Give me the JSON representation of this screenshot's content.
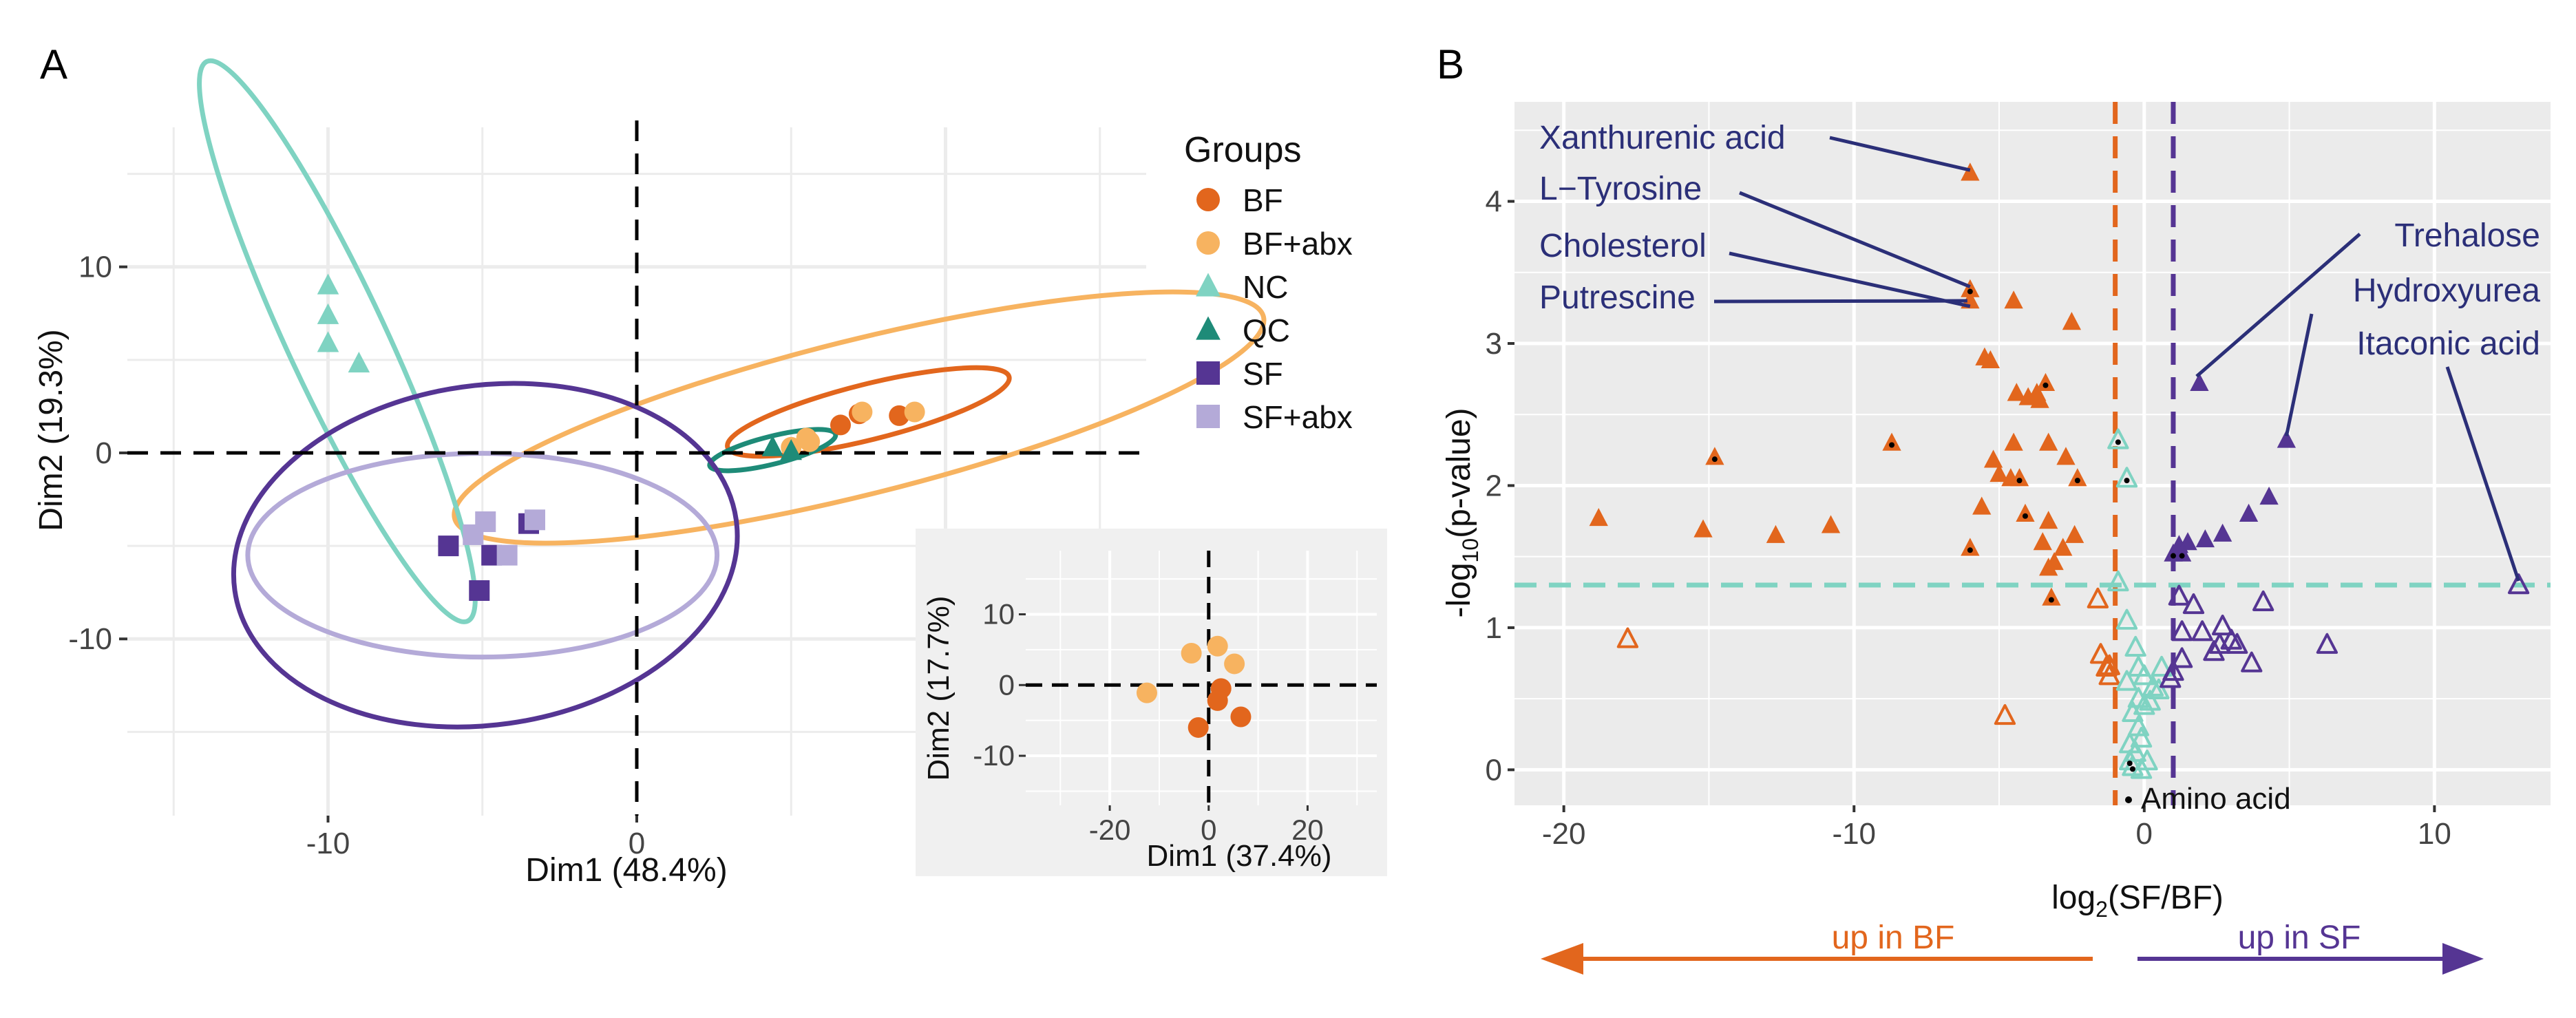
{
  "panel_labels": {
    "a": "A",
    "b": "B"
  },
  "colors": {
    "BF": "#e2661d",
    "BF_abx": "#f7b360",
    "NC": "#7fd3c2",
    "QC": "#1e8b78",
    "SF": "#553593",
    "SF_abx": "#b4aad8",
    "navy": "#2b2f78",
    "panel_bg": "#ebebeb",
    "grid": "#ffffff",
    "inset_bg": "#f0f0f0",
    "light_grid": "#ececec"
  },
  "chart_data": [
    {
      "type": "scatter",
      "id": "pca-main",
      "xlabel": "Dim1 (48.4%)",
      "ylabel": "Dim2 (19.3%)",
      "xlim": [
        -16.5,
        16.5
      ],
      "ylim": [
        -19.5,
        17.5
      ],
      "xticks": [
        -10,
        0
      ],
      "xtick_labels": [
        "-10",
        "0"
      ],
      "yticks": [
        10,
        0,
        -10
      ],
      "ytick_labels": [
        "10",
        "0",
        "-10"
      ],
      "legend": {
        "title": "Groups",
        "items": [
          {
            "label": "BF",
            "shape": "circle",
            "color_key": "BF"
          },
          {
            "label": "BF+abx",
            "shape": "circle",
            "color_key": "BF_abx"
          },
          {
            "label": "NC",
            "shape": "triangle",
            "color_key": "NC"
          },
          {
            "label": "QC",
            "shape": "triangle",
            "color_key": "QC"
          },
          {
            "label": "SF",
            "shape": "square",
            "color_key": "SF"
          },
          {
            "label": "SF+abx",
            "shape": "square",
            "color_key": "SF_abx"
          }
        ]
      },
      "series": [
        {
          "name": "BF",
          "shape": "circle",
          "color_key": "BF",
          "points": [
            [
              6.6,
              1.5
            ],
            [
              8.5,
              2.0
            ],
            [
              7.2,
              2.1
            ]
          ],
          "ellipse": {
            "cx": 7.5,
            "cy": 2.2,
            "rx": 4.7,
            "ry": 0.9,
            "angle": 14
          }
        },
        {
          "name": "BF+abx",
          "shape": "circle",
          "color_key": "BF_abx",
          "points": [
            [
              7.3,
              2.2
            ],
            [
              9.0,
              2.2
            ],
            [
              5.5,
              0.8
            ],
            [
              5.0,
              0.3
            ],
            [
              5.6,
              0.6
            ]
          ],
          "ellipse": {
            "cx": 7.2,
            "cy": 1.9,
            "rx": 13.5,
            "ry": 2.5,
            "angle": 14
          }
        },
        {
          "name": "NC",
          "shape": "triangle",
          "color_key": "NC",
          "points": [
            [
              -10.0,
              9.0
            ],
            [
              -10.0,
              7.4
            ],
            [
              -10.0,
              5.9
            ],
            [
              -9.0,
              4.8
            ]
          ],
          "ellipse": {
            "cx": -9.7,
            "cy": 6.0,
            "rx": 10.0,
            "ry": 1.6,
            "angle": -65
          }
        },
        {
          "name": "QC",
          "shape": "triangle",
          "color_key": "QC",
          "points": [
            [
              4.4,
              0.3
            ],
            [
              5.0,
              0.1
            ]
          ],
          "ellipse": {
            "cx": 4.4,
            "cy": 0.15,
            "rx": 2.1,
            "ry": 0.45,
            "angle": 14
          }
        },
        {
          "name": "SF",
          "shape": "square",
          "color_key": "SF",
          "points": [
            [
              -6.1,
              -5.0
            ],
            [
              -4.7,
              -5.5
            ],
            [
              -3.5,
              -3.8
            ],
            [
              -5.1,
              -7.4
            ]
          ],
          "ellipse": {
            "cx": -4.9,
            "cy": -5.5,
            "rx": 8.2,
            "ry": 5.5,
            "angle": 8
          }
        },
        {
          "name": "SF+abx",
          "shape": "square",
          "color_key": "SF_abx",
          "points": [
            [
              -4.9,
              -3.7
            ],
            [
              -5.3,
              -4.4
            ],
            [
              -4.2,
              -5.5
            ],
            [
              -3.3,
              -3.6
            ]
          ],
          "ellipse": {
            "cx": -5.0,
            "cy": -5.5,
            "rx": 7.6,
            "ry": 3.3,
            "angle": 0
          }
        }
      ]
    },
    {
      "type": "scatter",
      "id": "pca-inset",
      "xlabel": "Dim1 (37.4%)",
      "ylabel": "Dim2 (17.7%)",
      "xlim": [
        -37,
        34
      ],
      "ylim": [
        -17,
        19
      ],
      "xticks": [
        -20,
        0,
        20
      ],
      "xtick_labels": [
        "-20",
        "0",
        "20"
      ],
      "yticks": [
        10,
        0,
        -10
      ],
      "yticks_labels": [
        "10",
        "0",
        "-10"
      ],
      "series": [
        {
          "name": "BF",
          "color_key": "BF",
          "points": [
            [
              2.5,
              -0.5
            ],
            [
              1.8,
              -2.2
            ],
            [
              6.5,
              -4.5
            ],
            [
              -2.1,
              -6.0
            ]
          ]
        },
        {
          "name": "BF+abx",
          "color_key": "BF_abx",
          "points": [
            [
              -3.5,
              4.5
            ],
            [
              1.8,
              5.5
            ],
            [
              5.2,
              3.0
            ],
            [
              -12.5,
              -1.1
            ]
          ]
        }
      ]
    },
    {
      "type": "scatter",
      "id": "volcano",
      "xlabel": "log2(SF/BF)",
      "ylabel": "-log10(p-value)",
      "xlim": [
        -21.7,
        14
      ],
      "ylim": [
        -0.25,
        4.7
      ],
      "xticks": [
        -20,
        -10,
        0,
        10
      ],
      "xtick_labels": [
        "-20",
        "-10",
        "0",
        "10"
      ],
      "yticks": [
        0,
        1,
        2,
        3,
        4
      ],
      "ytick_labels": [
        "0",
        "1",
        "2",
        "3",
        "4"
      ],
      "thresholds": {
        "x_left": -1.0,
        "x_right": 1.0,
        "y": 1.3
      },
      "aa_legend": "Amino acid",
      "arrows": {
        "left": "up in BF",
        "right": "up in SF"
      },
      "series": [
        {
          "name": "up in BF (significant)",
          "color_key": "BF",
          "filled": true,
          "points": [
            [
              -6.0,
              4.2
            ],
            [
              -6.0,
              3.38
            ],
            [
              -4.5,
              3.3
            ],
            [
              -6.0,
              3.3
            ],
            [
              -2.5,
              3.15
            ],
            [
              -5.5,
              2.9
            ],
            [
              -5.3,
              2.88
            ],
            [
              -4.4,
              2.65
            ],
            [
              -4.0,
              2.62
            ],
            [
              -3.7,
              2.65
            ],
            [
              -3.4,
              2.72
            ],
            [
              -3.6,
              2.6
            ],
            [
              -4.5,
              2.3
            ],
            [
              -3.3,
              2.3
            ],
            [
              -2.7,
              2.2
            ],
            [
              -8.7,
              2.3
            ],
            [
              -14.8,
              2.2
            ],
            [
              -5.2,
              2.18
            ],
            [
              -5.0,
              2.08
            ],
            [
              -4.6,
              2.05
            ],
            [
              -4.3,
              2.05
            ],
            [
              -2.3,
              2.05
            ],
            [
              -5.6,
              1.85
            ],
            [
              -4.1,
              1.8
            ],
            [
              -3.3,
              1.75
            ],
            [
              -3.5,
              1.6
            ],
            [
              -2.4,
              1.65
            ],
            [
              -18.8,
              1.77
            ],
            [
              -15.2,
              1.69
            ],
            [
              -12.7,
              1.65
            ],
            [
              -10.8,
              1.72
            ],
            [
              -6.0,
              1.56
            ],
            [
              -2.8,
              1.56
            ],
            [
              -3.1,
              1.46
            ],
            [
              -3.3,
              1.42
            ],
            [
              -3.2,
              1.21
            ]
          ],
          "amino_acids": [
            [
              -6.0,
              3.38
            ],
            [
              -3.4,
              2.72
            ],
            [
              -8.7,
              2.3
            ],
            [
              -14.8,
              2.2
            ],
            [
              -4.3,
              2.05
            ],
            [
              -2.3,
              2.05
            ],
            [
              -4.1,
              1.8
            ],
            [
              -6.0,
              1.56
            ],
            [
              -3.2,
              1.21
            ]
          ]
        },
        {
          "name": "up in SF (significant)",
          "color_key": "SF",
          "filled": true,
          "points": [
            [
              1.9,
              2.72
            ],
            [
              4.9,
              2.32
            ],
            [
              4.3,
              1.92
            ],
            [
              3.6,
              1.8
            ],
            [
              2.1,
              1.62
            ],
            [
              2.7,
              1.66
            ],
            [
              1.5,
              1.6
            ],
            [
              1.2,
              1.58
            ],
            [
              1.3,
              1.52
            ],
            [
              1.0,
              1.52
            ]
          ],
          "amino_acids": [
            [
              1.3,
              1.52
            ],
            [
              1.0,
              1.52
            ]
          ]
        },
        {
          "name": "BF (not significant)",
          "color_key": "BF",
          "filled": false,
          "points": [
            [
              -17.8,
              0.92
            ],
            [
              -4.8,
              0.38
            ],
            [
              -1.6,
              1.2
            ],
            [
              -1.3,
              0.72
            ],
            [
              -1.5,
              0.81
            ],
            [
              -1.2,
              0.66
            ],
            [
              -1.2,
              0.73
            ]
          ],
          "amino_acids": []
        },
        {
          "name": "NC (not significant)",
          "color_key": "NC",
          "filled": false,
          "points": [
            [
              -0.9,
              2.32
            ],
            [
              -0.6,
              2.05
            ],
            [
              -0.9,
              1.32
            ],
            [
              -0.6,
              1.05
            ],
            [
              -0.3,
              0.86
            ],
            [
              -0.6,
              0.62
            ],
            [
              -0.2,
              0.72
            ],
            [
              0.0,
              0.66
            ],
            [
              -0.2,
              0.5
            ],
            [
              0.0,
              0.45
            ],
            [
              0.3,
              0.58
            ],
            [
              0.5,
              0.56
            ],
            [
              0.2,
              0.48
            ],
            [
              -0.4,
              0.4
            ],
            [
              -0.2,
              0.3
            ],
            [
              -0.1,
              0.22
            ],
            [
              -0.5,
              0.18
            ],
            [
              -0.3,
              0.12
            ],
            [
              -0.5,
              0.06
            ],
            [
              -0.4,
              0.02
            ],
            [
              0.1,
              0.06
            ],
            [
              -0.1,
              0.0
            ],
            [
              0.6,
              0.72
            ]
          ],
          "amino_acids": [
            [
              -0.9,
              2.32
            ],
            [
              -0.6,
              2.05
            ],
            [
              -0.5,
              0.06
            ],
            [
              -0.4,
              0.02
            ]
          ]
        },
        {
          "name": "SF (not significant)",
          "color_key": "SF",
          "filled": false,
          "points": [
            [
              12.9,
              1.3
            ],
            [
              1.2,
              1.22
            ],
            [
              1.7,
              1.16
            ],
            [
              1.3,
              0.97
            ],
            [
              2.0,
              0.97
            ],
            [
              2.7,
              1.01
            ],
            [
              2.4,
              0.83
            ],
            [
              2.6,
              0.88
            ],
            [
              3.0,
              0.91
            ],
            [
              3.2,
              0.88
            ],
            [
              3.7,
              0.75
            ],
            [
              4.1,
              1.18
            ],
            [
              6.3,
              0.88
            ],
            [
              1.3,
              0.78
            ],
            [
              1.0,
              0.69
            ],
            [
              0.9,
              0.64
            ]
          ],
          "amino_acids": []
        }
      ],
      "annotations": [
        {
          "label": "Xanthurenic acid",
          "x": -6.0,
          "y": 4.2
        },
        {
          "label": "L−Tyrosine",
          "x": -6.0,
          "y": 3.38
        },
        {
          "label": "Cholesterol",
          "x": -6.0,
          "y": 3.3
        },
        {
          "label": "Putrescine",
          "x": -6.0,
          "y": 3.3
        },
        {
          "label": "Trehalose",
          "x": 1.9,
          "y": 2.72
        },
        {
          "label": "Hydroxyurea",
          "x": 4.9,
          "y": 2.32
        },
        {
          "label": "Itaconic acid",
          "x": 12.9,
          "y": 1.3
        }
      ]
    }
  ]
}
